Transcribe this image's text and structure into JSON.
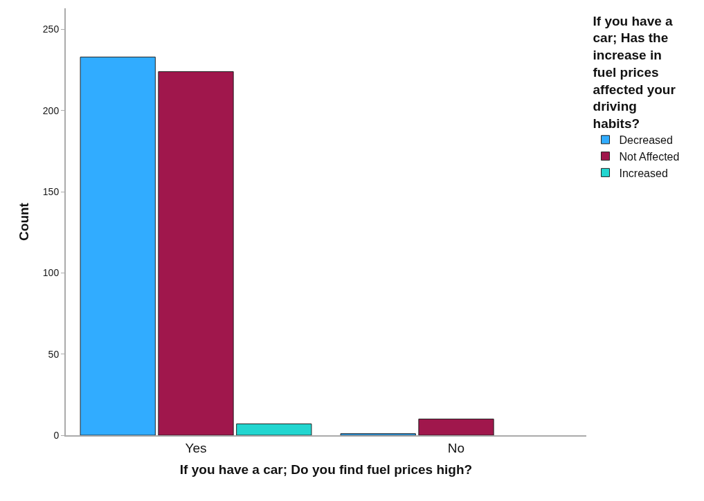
{
  "chart_data": {
    "type": "bar",
    "xlabel": "If you have a car; Do you find fuel prices high?",
    "ylabel": "Count",
    "legend_title": "If you have a car; Has the increase in fuel prices affected your driving habits?",
    "categories": [
      "Yes",
      "No"
    ],
    "series": [
      {
        "name": "Decreased",
        "color": "#31acff",
        "values": [
          233,
          1
        ]
      },
      {
        "name": "Not Affected",
        "color": "#a0174c",
        "values": [
          224,
          10
        ]
      },
      {
        "name": "Increased",
        "color": "#22d6d0",
        "values": [
          7,
          null
        ]
      }
    ],
    "ylim": [
      0,
      263
    ],
    "yticks": [
      0,
      50,
      100,
      150,
      200,
      250
    ],
    "legend": "right"
  }
}
